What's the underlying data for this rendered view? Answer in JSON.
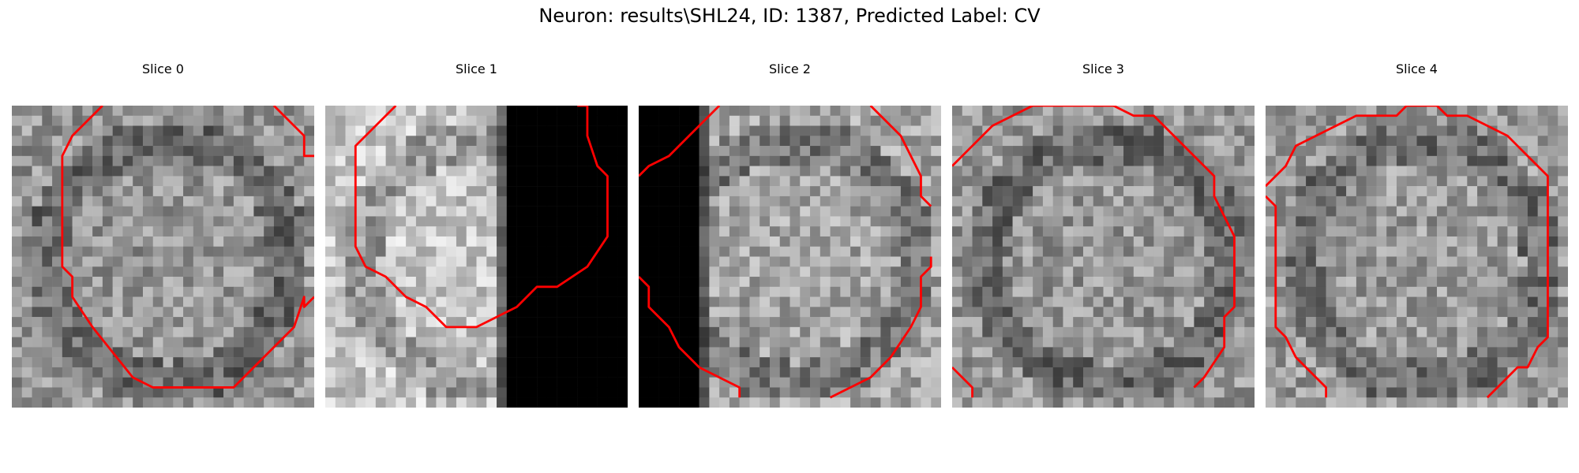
{
  "figure": {
    "title": "Neuron: results\\SHL24, ID: 1387, Predicted Label: CV"
  },
  "panels": [
    {
      "title": "Slice 0",
      "seed": 11,
      "base": 150,
      "dark_band": null
    },
    {
      "title": "Slice 1",
      "seed": 23,
      "base": 200,
      "dark_band": "right"
    },
    {
      "title": "Slice 2",
      "seed": 37,
      "base": 165,
      "dark_band": "left"
    },
    {
      "title": "Slice 3",
      "seed": 41,
      "base": 150,
      "dark_band": null
    },
    {
      "title": "Slice 4",
      "seed": 53,
      "base": 155,
      "dark_band": null
    }
  ],
  "contour_color": "#ff0000",
  "colormap": "gray"
}
